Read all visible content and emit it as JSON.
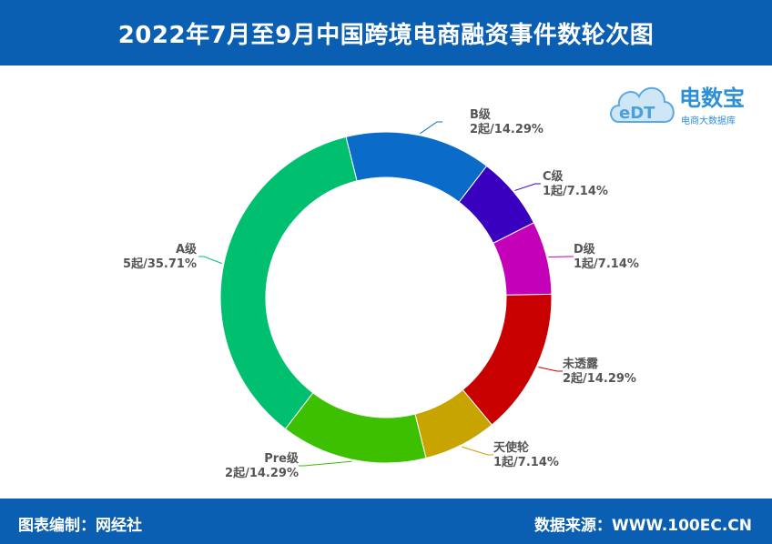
{
  "title": "2022年7月至9月中国跨境电商融资事件数轮次图",
  "footer": {
    "left": "图表编制：网经社",
    "right": "数据来源：WWW.100EC.CN"
  },
  "logo": {
    "mark": "eDT",
    "name": "电数宝",
    "tagline": "电商大数据库"
  },
  "chart_data": {
    "type": "pie",
    "donut": true,
    "unit": "起",
    "slices": [
      {
        "name": "B级",
        "value": 2,
        "percent": "14.29%",
        "label": "2起/14.29%",
        "color": "#0a6cc8"
      },
      {
        "name": "C级",
        "value": 1,
        "percent": "7.14%",
        "label": "1起/7.14%",
        "color": "#3a00c0"
      },
      {
        "name": "D级",
        "value": 1,
        "percent": "7.14%",
        "label": "1起/7.14%",
        "color": "#c400b8"
      },
      {
        "name": "未透露",
        "value": 2,
        "percent": "14.29%",
        "label": "2起/14.29%",
        "color": "#c80000"
      },
      {
        "name": "天使轮",
        "value": 1,
        "percent": "7.14%",
        "label": "1起/7.14%",
        "color": "#c8a400"
      },
      {
        "name": "Pre级",
        "value": 2,
        "percent": "14.29%",
        "label": "2起/14.29%",
        "color": "#3cc000"
      },
      {
        "name": "A级",
        "value": 5,
        "percent": "35.71%",
        "label": "5起/35.71%",
        "color": "#00c070"
      }
    ]
  }
}
